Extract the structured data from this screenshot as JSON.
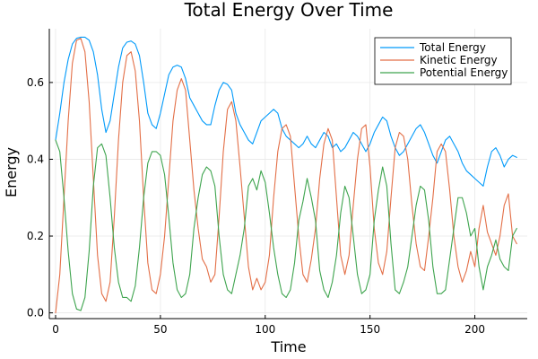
{
  "chart_data": {
    "type": "line",
    "title": "Total Energy Over Time",
    "xlabel": "Time",
    "ylabel": "Energy",
    "xlim": [
      -3,
      225
    ],
    "ylim": [
      -0.015,
      0.74
    ],
    "xticks": [
      0,
      50,
      100,
      150,
      200
    ],
    "xtick_labels": [
      "0",
      "50",
      "100",
      "150",
      "200"
    ],
    "yticks": [
      0.0,
      0.2,
      0.4,
      0.6
    ],
    "ytick_labels": [
      "0.0",
      "0.2",
      "0.4",
      "0.6"
    ],
    "grid": true,
    "legend_position": "top-right",
    "colors": {
      "total": "#009AFA",
      "kinetic": "#E36F47",
      "potential": "#3EA44E"
    },
    "series": [
      {
        "name": "Total Energy",
        "color": "#009AFA",
        "x": [
          0,
          2,
          4,
          6,
          8,
          10,
          12,
          14,
          16,
          18,
          20,
          22,
          24,
          26,
          28,
          30,
          32,
          34,
          36,
          38,
          40,
          42,
          44,
          46,
          48,
          50,
          52,
          54,
          56,
          58,
          60,
          62,
          64,
          66,
          68,
          70,
          72,
          74,
          76,
          78,
          80,
          82,
          84,
          86,
          88,
          90,
          92,
          94,
          96,
          98,
          100,
          102,
          104,
          106,
          108,
          110,
          112,
          114,
          116,
          118,
          120,
          122,
          124,
          126,
          128,
          130,
          132,
          134,
          136,
          138,
          140,
          142,
          144,
          146,
          148,
          150,
          152,
          154,
          156,
          158,
          160,
          162,
          164,
          166,
          168,
          170,
          172,
          174,
          176,
          178,
          180,
          182,
          184,
          186,
          188,
          190,
          192,
          194,
          196,
          198,
          200,
          202,
          204,
          206,
          208,
          210,
          212,
          214,
          216,
          218,
          220
        ],
        "y": [
          0.45,
          0.52,
          0.6,
          0.66,
          0.7,
          0.715,
          0.718,
          0.718,
          0.71,
          0.68,
          0.62,
          0.53,
          0.47,
          0.5,
          0.57,
          0.64,
          0.69,
          0.705,
          0.708,
          0.7,
          0.67,
          0.6,
          0.52,
          0.49,
          0.48,
          0.52,
          0.57,
          0.62,
          0.64,
          0.645,
          0.64,
          0.61,
          0.56,
          0.54,
          0.52,
          0.5,
          0.49,
          0.49,
          0.54,
          0.58,
          0.6,
          0.595,
          0.58,
          0.52,
          0.49,
          0.47,
          0.45,
          0.44,
          0.47,
          0.5,
          0.51,
          0.52,
          0.53,
          0.52,
          0.48,
          0.46,
          0.45,
          0.44,
          0.43,
          0.44,
          0.46,
          0.44,
          0.43,
          0.45,
          0.47,
          0.46,
          0.43,
          0.44,
          0.42,
          0.43,
          0.45,
          0.47,
          0.46,
          0.44,
          0.42,
          0.44,
          0.47,
          0.49,
          0.51,
          0.5,
          0.46,
          0.43,
          0.41,
          0.42,
          0.44,
          0.46,
          0.48,
          0.49,
          0.47,
          0.44,
          0.41,
          0.39,
          0.42,
          0.45,
          0.46,
          0.44,
          0.42,
          0.39,
          0.37,
          0.36,
          0.35,
          0.34,
          0.33,
          0.38,
          0.42,
          0.43,
          0.41,
          0.38,
          0.4,
          0.41,
          0.405
        ]
      },
      {
        "name": "Kinetic Energy",
        "color": "#E36F47",
        "x": [
          0,
          2,
          4,
          6,
          8,
          10,
          12,
          14,
          16,
          18,
          20,
          22,
          24,
          26,
          28,
          30,
          32,
          34,
          36,
          38,
          40,
          42,
          44,
          46,
          48,
          50,
          52,
          54,
          56,
          58,
          60,
          62,
          64,
          66,
          68,
          70,
          72,
          74,
          76,
          78,
          80,
          82,
          84,
          86,
          88,
          90,
          92,
          94,
          96,
          98,
          100,
          102,
          104,
          106,
          108,
          110,
          112,
          114,
          116,
          118,
          120,
          122,
          124,
          126,
          128,
          130,
          132,
          134,
          136,
          138,
          140,
          142,
          144,
          146,
          148,
          150,
          152,
          154,
          156,
          158,
          160,
          162,
          164,
          166,
          168,
          170,
          172,
          174,
          176,
          178,
          180,
          182,
          184,
          186,
          188,
          190,
          192,
          194,
          196,
          198,
          200,
          202,
          204,
          206,
          208,
          210,
          212,
          214,
          216,
          218,
          220
        ],
        "y": [
          0.0,
          0.1,
          0.3,
          0.5,
          0.65,
          0.71,
          0.715,
          0.68,
          0.55,
          0.35,
          0.15,
          0.05,
          0.03,
          0.08,
          0.25,
          0.45,
          0.6,
          0.67,
          0.68,
          0.63,
          0.5,
          0.3,
          0.13,
          0.06,
          0.05,
          0.1,
          0.2,
          0.35,
          0.5,
          0.58,
          0.61,
          0.58,
          0.45,
          0.32,
          0.22,
          0.14,
          0.12,
          0.08,
          0.1,
          0.25,
          0.42,
          0.53,
          0.55,
          0.5,
          0.38,
          0.25,
          0.12,
          0.06,
          0.09,
          0.06,
          0.08,
          0.15,
          0.3,
          0.42,
          0.48,
          0.49,
          0.46,
          0.33,
          0.2,
          0.1,
          0.08,
          0.14,
          0.22,
          0.35,
          0.44,
          0.48,
          0.45,
          0.3,
          0.15,
          0.1,
          0.15,
          0.28,
          0.4,
          0.48,
          0.49,
          0.38,
          0.22,
          0.13,
          0.1,
          0.16,
          0.3,
          0.43,
          0.47,
          0.46,
          0.4,
          0.28,
          0.18,
          0.12,
          0.11,
          0.2,
          0.3,
          0.42,
          0.44,
          0.42,
          0.32,
          0.2,
          0.12,
          0.08,
          0.11,
          0.16,
          0.12,
          0.22,
          0.28,
          0.21,
          0.18,
          0.15,
          0.2,
          0.28,
          0.31,
          0.2,
          0.18
        ]
      },
      {
        "name": "Potential Energy",
        "color": "#3EA44E",
        "x": [
          0,
          2,
          4,
          6,
          8,
          10,
          12,
          14,
          16,
          18,
          20,
          22,
          24,
          26,
          28,
          30,
          32,
          34,
          36,
          38,
          40,
          42,
          44,
          46,
          48,
          50,
          52,
          54,
          56,
          58,
          60,
          62,
          64,
          66,
          68,
          70,
          72,
          74,
          76,
          78,
          80,
          82,
          84,
          86,
          88,
          90,
          92,
          94,
          96,
          98,
          100,
          102,
          104,
          106,
          108,
          110,
          112,
          114,
          116,
          118,
          120,
          122,
          124,
          126,
          128,
          130,
          132,
          134,
          136,
          138,
          140,
          142,
          144,
          146,
          148,
          150,
          152,
          154,
          156,
          158,
          160,
          162,
          164,
          166,
          168,
          170,
          172,
          174,
          176,
          178,
          180,
          182,
          184,
          186,
          188,
          190,
          192,
          194,
          196,
          198,
          200,
          202,
          204,
          206,
          208,
          210,
          212,
          214,
          216,
          218,
          220
        ],
        "y": [
          0.45,
          0.42,
          0.3,
          0.16,
          0.05,
          0.01,
          0.006,
          0.04,
          0.16,
          0.33,
          0.43,
          0.44,
          0.41,
          0.3,
          0.17,
          0.08,
          0.04,
          0.04,
          0.03,
          0.07,
          0.17,
          0.3,
          0.39,
          0.42,
          0.42,
          0.41,
          0.36,
          0.25,
          0.13,
          0.06,
          0.04,
          0.05,
          0.1,
          0.22,
          0.3,
          0.36,
          0.38,
          0.37,
          0.33,
          0.2,
          0.1,
          0.06,
          0.05,
          0.1,
          0.15,
          0.22,
          0.33,
          0.35,
          0.32,
          0.37,
          0.34,
          0.26,
          0.17,
          0.1,
          0.05,
          0.04,
          0.06,
          0.13,
          0.24,
          0.29,
          0.35,
          0.3,
          0.24,
          0.11,
          0.06,
          0.04,
          0.08,
          0.15,
          0.26,
          0.33,
          0.3,
          0.2,
          0.1,
          0.05,
          0.06,
          0.1,
          0.24,
          0.32,
          0.38,
          0.33,
          0.18,
          0.06,
          0.05,
          0.08,
          0.12,
          0.2,
          0.28,
          0.33,
          0.32,
          0.24,
          0.12,
          0.05,
          0.05,
          0.06,
          0.14,
          0.22,
          0.3,
          0.3,
          0.26,
          0.2,
          0.22,
          0.12,
          0.06,
          0.12,
          0.15,
          0.19,
          0.14,
          0.12,
          0.11,
          0.2,
          0.22
        ]
      }
    ]
  }
}
